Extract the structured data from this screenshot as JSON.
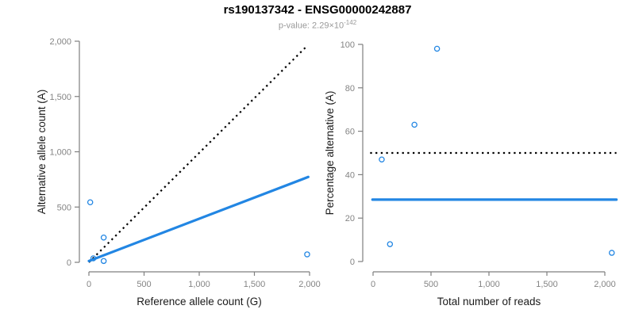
{
  "header": {
    "title": "rs190137342 - ENSG00000242887",
    "subtitle_prefix": "p-value: 2.29×10",
    "subtitle_exponent": "-142"
  },
  "colors": {
    "accent_blue": "#2286E3",
    "dotted_black": "#000000",
    "axis_gray": "#7f7f7f",
    "tick_label_gray": "#848484",
    "subtitle_gray": "#999999"
  },
  "chart_data": [
    {
      "type": "scatter",
      "panel": "allele-counts",
      "xlabel": "Reference allele count (G)",
      "ylabel": "Alternative allele count (A)",
      "xlim": [
        0,
        2000
      ],
      "ylim": [
        0,
        2000
      ],
      "xticks": [
        0,
        500,
        1000,
        1500,
        2000
      ],
      "xtick_labels": [
        "0",
        "500",
        "1,000",
        "1,500",
        "2,000"
      ],
      "yticks": [
        0,
        500,
        1000,
        1500,
        2000
      ],
      "ytick_labels": [
        "0",
        "500",
        "1,000",
        "1,500",
        "2,000"
      ],
      "grid": false,
      "legend": false,
      "points": [
        {
          "x": 12,
          "y": 543
        },
        {
          "x": 134,
          "y": 224
        },
        {
          "x": 40,
          "y": 36
        },
        {
          "x": 134,
          "y": 12
        },
        {
          "x": 1978,
          "y": 72
        }
      ],
      "lines": [
        {
          "name": "identity-line",
          "style": "dotted",
          "color": "#000000",
          "width": 2.2,
          "from": [
            0,
            0
          ],
          "to": [
            1982,
            1962
          ]
        },
        {
          "name": "fitted-line",
          "style": "solid",
          "color": "#2286E3",
          "width": 3.2,
          "from": [
            0,
            12
          ],
          "to": [
            1988,
            772
          ]
        }
      ]
    },
    {
      "type": "scatter",
      "panel": "percentage-alternative",
      "xlabel": "Total number of reads",
      "ylabel": "Percentage alternative (A)",
      "xlim": [
        0,
        2100
      ],
      "ylim": [
        0,
        100
      ],
      "xticks": [
        0,
        500,
        1000,
        1500,
        2000
      ],
      "xtick_labels": [
        "0",
        "500",
        "1,000",
        "1,500",
        "2,000"
      ],
      "yticks": [
        0,
        20,
        40,
        60,
        80,
        100
      ],
      "ytick_labels": [
        "0",
        "20",
        "40",
        "60",
        "80",
        "100"
      ],
      "grid": false,
      "legend": false,
      "points": [
        {
          "x": 552,
          "y": 98
        },
        {
          "x": 357,
          "y": 63
        },
        {
          "x": 75,
          "y": 47
        },
        {
          "x": 146,
          "y": 8
        },
        {
          "x": 2060,
          "y": 4
        }
      ],
      "lines": [
        {
          "name": "fifty-percent-line",
          "style": "dotted",
          "color": "#000000",
          "width": 2.2,
          "from": [
            -25,
            50
          ],
          "to": [
            2100,
            50
          ]
        },
        {
          "name": "mean-percentage-line",
          "style": "solid",
          "color": "#2286E3",
          "width": 3.2,
          "from": [
            -5,
            28.5
          ],
          "to": [
            2100,
            28.5
          ]
        }
      ]
    }
  ]
}
